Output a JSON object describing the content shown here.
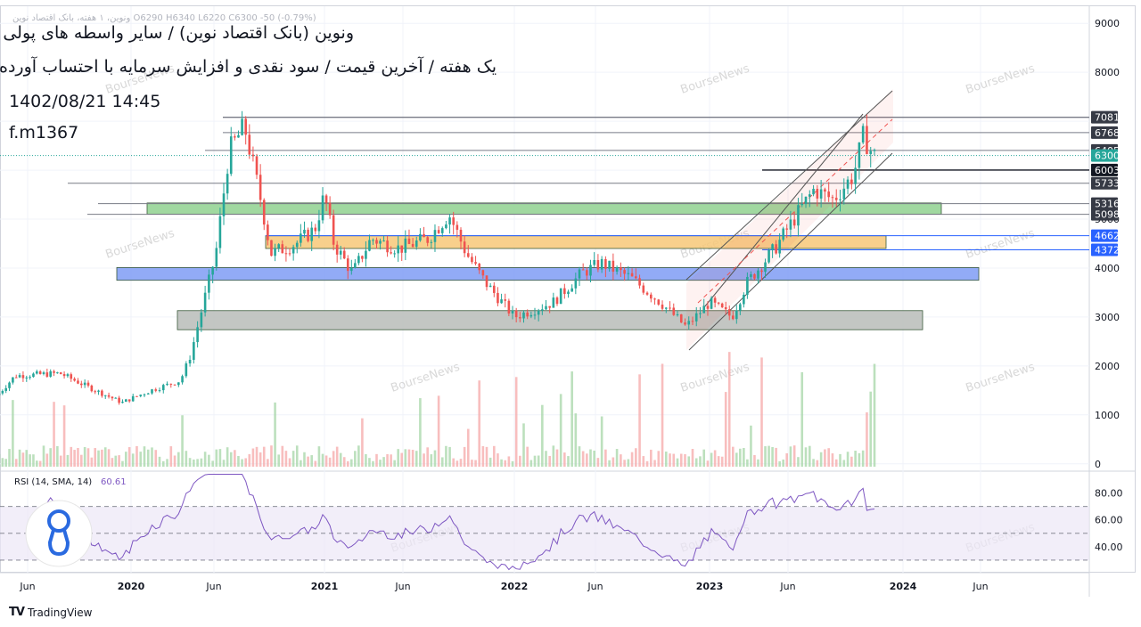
{
  "header": {
    "faded_symbol_line": "ونوین، ۱ هفته، بانک اقتصاد نوین  O6290  H6340  L6220  C6300  -50 (-0.79%)",
    "title": "ونوین (بانک اقتصاد نوین) / سایر واسطه های پولی",
    "subtitle": "یک هفته / آخرین قیمت / سود نقدی و افزایش سرمایه با احتساب آورده",
    "datetime": "1402/08/21 14:45",
    "code": "f.m1367"
  },
  "watermark": "BourseNews",
  "footer": {
    "brand": "TradingView",
    "brand_mark": "TV"
  },
  "chart_data": [
    {
      "type": "candlestick",
      "timeframe": "1W",
      "price_axis": {
        "ticks": [
          0,
          1000,
          2000,
          3000,
          4000,
          5000,
          8000,
          9000
        ],
        "range": [
          -150,
          9350
        ]
      },
      "time_axis": {
        "labels": [
          "Jun",
          "2020",
          "Jun",
          "2021",
          "Jun",
          "2022",
          "Jun",
          "2023",
          "Jun",
          "2024",
          "Jun"
        ]
      },
      "last_price": 6300,
      "price_labels": [
        {
          "value": 7081,
          "color": "#363a45"
        },
        {
          "value": 6768,
          "color": "#363a45"
        },
        {
          "value": 6405,
          "color": "#363a45"
        },
        {
          "value": 6300,
          "color": "#26a69a"
        },
        {
          "value": 6003,
          "color": "#131722"
        },
        {
          "value": 5733,
          "color": "#363a45"
        },
        {
          "value": 5316,
          "color": "#363a45"
        },
        {
          "value": 5098,
          "color": "#363a45"
        },
        {
          "value": 4662,
          "color": "#2962ff"
        },
        {
          "value": 4372,
          "color": "#2962ff"
        }
      ],
      "horizontal_levels": [
        7081,
        6768,
        6405,
        6003,
        5733,
        5316,
        5098,
        4662,
        4372
      ],
      "zones": [
        {
          "name": "green-zone",
          "low": 5100,
          "high": 5330,
          "color": "#8fd18f"
        },
        {
          "name": "orange-zone",
          "low": 4400,
          "high": 4660,
          "color": "#f7c878"
        },
        {
          "name": "blue-zone",
          "low": 3750,
          "high": 4010,
          "color": "#7f9cf5"
        },
        {
          "name": "gray-zone",
          "low": 2740,
          "high": 3130,
          "color": "#b8bcb8"
        }
      ],
      "trend_channel": {
        "start": "2022-09",
        "end": "2023-11",
        "color": "#ef5350"
      },
      "volume": {
        "axis_value": 0
      },
      "bull_color": "#26a69a",
      "bear_color": "#ef5350",
      "watermark": "BourseNews"
    },
    {
      "type": "line",
      "title": "RSI (14, SMA, 14)",
      "last_value": "60.61",
      "y_ticks": [
        80.0,
        60.0,
        40.0
      ],
      "y_tick_labels": [
        "80.00",
        "60.00",
        "40.00"
      ],
      "bands": {
        "upper": 70,
        "middle": 50,
        "lower": 30
      },
      "ylim": [
        22,
        95
      ],
      "line_color": "#7e57c2",
      "band_fill": "#ede7f6"
    }
  ]
}
